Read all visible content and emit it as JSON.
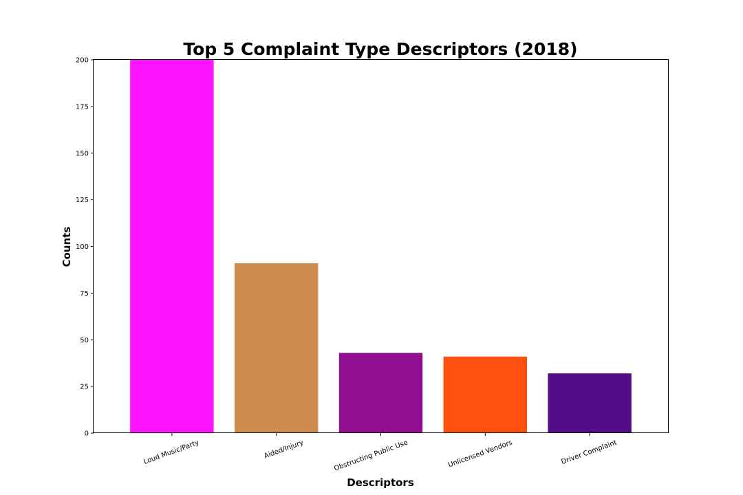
{
  "chart_data": {
    "type": "bar",
    "title": "Top 5 Complaint Type Descriptors (2018)",
    "xlabel": "Descriptors",
    "ylabel": "Counts",
    "categories": [
      "Loud Music/Party",
      "Aided/Injury",
      "Obstructing Public Use",
      "Unlicensed Vendors",
      "Driver Complaint"
    ],
    "values": [
      200,
      91,
      43,
      41,
      32
    ],
    "colors": [
      "#ff14ff",
      "#cd8c4b",
      "#8f0f8f",
      "#ff5010",
      "#540c87"
    ],
    "ylim": [
      0,
      200
    ],
    "yticks": [
      0,
      25,
      50,
      75,
      100,
      125,
      150,
      175,
      200
    ],
    "grid": false,
    "legend": "none"
  }
}
